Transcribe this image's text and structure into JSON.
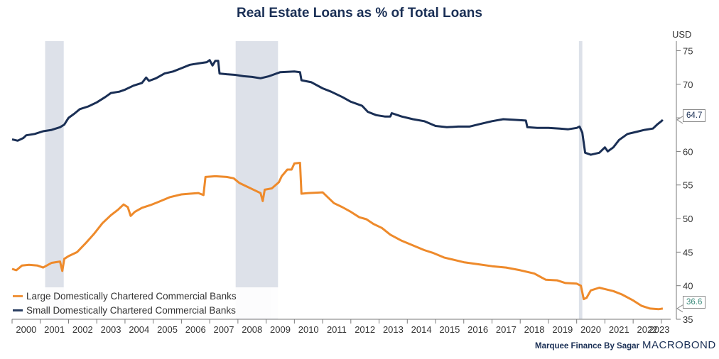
{
  "chart_data": {
    "type": "line",
    "title": "Real Estate Loans as % of Total Loans",
    "unit_label": "USD",
    "xlim": [
      2000.0,
      2023.33
    ],
    "ylim": [
      35,
      76
    ],
    "y_ticks": [
      35,
      40,
      45,
      50,
      55,
      60,
      65,
      70,
      75
    ],
    "x_tick_labels": [
      "2000",
      "2001",
      "2002",
      "2003",
      "2004",
      "2005",
      "2006",
      "2007",
      "2008",
      "2009",
      "2010",
      "2011",
      "2012",
      "2013",
      "2014",
      "2015",
      "2016",
      "2017",
      "2018",
      "2019",
      "2020",
      "2021",
      "2022",
      "2023"
    ],
    "recessions": [
      [
        2001.17,
        2001.83
      ],
      [
        2007.92,
        2009.42
      ],
      [
        2020.08,
        2020.2
      ]
    ],
    "grid": false,
    "legend_placement": "bottom-left",
    "series": [
      {
        "name": "Large Domestically Chartered Commercial Banks",
        "color": "#ee8a2b",
        "last_value": "36.6",
        "points": [
          [
            2000.0,
            42.5
          ],
          [
            2000.15,
            42.3
          ],
          [
            2000.35,
            43.0
          ],
          [
            2000.6,
            43.1
          ],
          [
            2000.9,
            43.0
          ],
          [
            2001.1,
            42.7
          ],
          [
            2001.4,
            43.4
          ],
          [
            2001.7,
            43.6
          ],
          [
            2001.78,
            42.2
          ],
          [
            2001.85,
            44.0
          ],
          [
            2002.0,
            44.4
          ],
          [
            2002.3,
            45.0
          ],
          [
            2002.6,
            46.3
          ],
          [
            2002.9,
            47.7
          ],
          [
            2003.2,
            49.3
          ],
          [
            2003.5,
            50.5
          ],
          [
            2003.75,
            51.3
          ],
          [
            2003.95,
            52.1
          ],
          [
            2004.1,
            51.7
          ],
          [
            2004.2,
            50.4
          ],
          [
            2004.35,
            51.0
          ],
          [
            2004.6,
            51.6
          ],
          [
            2004.9,
            52.0
          ],
          [
            2005.2,
            52.5
          ],
          [
            2005.6,
            53.2
          ],
          [
            2006.0,
            53.6
          ],
          [
            2006.3,
            53.7
          ],
          [
            2006.6,
            53.8
          ],
          [
            2006.78,
            53.5
          ],
          [
            2006.85,
            56.2
          ],
          [
            2007.2,
            56.3
          ],
          [
            2007.6,
            56.2
          ],
          [
            2007.85,
            56.0
          ],
          [
            2008.05,
            55.3
          ],
          [
            2008.3,
            54.8
          ],
          [
            2008.6,
            54.2
          ],
          [
            2008.8,
            53.8
          ],
          [
            2008.88,
            52.6
          ],
          [
            2008.95,
            54.3
          ],
          [
            2009.2,
            54.5
          ],
          [
            2009.45,
            55.4
          ],
          [
            2009.55,
            56.3
          ],
          [
            2009.75,
            57.3
          ],
          [
            2009.9,
            57.3
          ],
          [
            2010.0,
            58.2
          ],
          [
            2010.2,
            58.3
          ],
          [
            2010.25,
            53.7
          ],
          [
            2010.5,
            53.8
          ],
          [
            2011.0,
            53.9
          ],
          [
            2011.4,
            52.3
          ],
          [
            2011.7,
            51.7
          ],
          [
            2012.0,
            51.0
          ],
          [
            2012.3,
            50.2
          ],
          [
            2012.55,
            49.9
          ],
          [
            2012.8,
            49.2
          ],
          [
            2013.1,
            48.6
          ],
          [
            2013.4,
            47.6
          ],
          [
            2013.8,
            46.7
          ],
          [
            2014.2,
            46.0
          ],
          [
            2014.6,
            45.3
          ],
          [
            2014.9,
            44.9
          ],
          [
            2015.3,
            44.2
          ],
          [
            2015.7,
            43.8
          ],
          [
            2016.0,
            43.5
          ],
          [
            2016.5,
            43.2
          ],
          [
            2017.0,
            42.9
          ],
          [
            2017.5,
            42.7
          ],
          [
            2018.0,
            42.3
          ],
          [
            2018.5,
            41.8
          ],
          [
            2018.9,
            40.9
          ],
          [
            2019.3,
            40.8
          ],
          [
            2019.6,
            40.4
          ],
          [
            2020.0,
            40.3
          ],
          [
            2020.15,
            40.0
          ],
          [
            2020.25,
            38.0
          ],
          [
            2020.35,
            38.2
          ],
          [
            2020.5,
            39.3
          ],
          [
            2020.8,
            39.7
          ],
          [
            2021.0,
            39.5
          ],
          [
            2021.3,
            39.2
          ],
          [
            2021.6,
            38.7
          ],
          [
            2022.0,
            37.8
          ],
          [
            2022.3,
            37.0
          ],
          [
            2022.6,
            36.6
          ],
          [
            2022.9,
            36.5
          ],
          [
            2023.05,
            36.6
          ]
        ]
      },
      {
        "name": "Small Domestically Chartered Commercial Banks",
        "color": "#1a2f55",
        "last_value": "64.7",
        "points": [
          [
            2000.0,
            61.8
          ],
          [
            2000.2,
            61.6
          ],
          [
            2000.4,
            62.0
          ],
          [
            2000.5,
            62.4
          ],
          [
            2000.8,
            62.6
          ],
          [
            2001.1,
            63.0
          ],
          [
            2001.4,
            63.2
          ],
          [
            2001.7,
            63.6
          ],
          [
            2001.85,
            64.0
          ],
          [
            2002.0,
            65.0
          ],
          [
            2002.2,
            65.6
          ],
          [
            2002.4,
            66.3
          ],
          [
            2002.7,
            66.7
          ],
          [
            2003.0,
            67.3
          ],
          [
            2003.3,
            68.1
          ],
          [
            2003.5,
            68.7
          ],
          [
            2003.8,
            68.9
          ],
          [
            2004.0,
            69.2
          ],
          [
            2004.3,
            69.8
          ],
          [
            2004.6,
            70.2
          ],
          [
            2004.75,
            71.0
          ],
          [
            2004.85,
            70.5
          ],
          [
            2005.1,
            70.9
          ],
          [
            2005.4,
            71.6
          ],
          [
            2005.7,
            71.9
          ],
          [
            2006.0,
            72.4
          ],
          [
            2006.3,
            72.9
          ],
          [
            2006.6,
            73.1
          ],
          [
            2006.9,
            73.3
          ],
          [
            2007.0,
            73.6
          ],
          [
            2007.1,
            72.8
          ],
          [
            2007.2,
            73.5
          ],
          [
            2007.3,
            73.5
          ],
          [
            2007.35,
            71.6
          ],
          [
            2007.6,
            71.5
          ],
          [
            2007.9,
            71.4
          ],
          [
            2008.2,
            71.2
          ],
          [
            2008.5,
            71.1
          ],
          [
            2008.8,
            70.9
          ],
          [
            2009.1,
            71.2
          ],
          [
            2009.5,
            71.8
          ],
          [
            2010.0,
            71.9
          ],
          [
            2010.2,
            71.8
          ],
          [
            2010.25,
            70.6
          ],
          [
            2010.6,
            70.3
          ],
          [
            2011.0,
            69.4
          ],
          [
            2011.3,
            68.9
          ],
          [
            2011.7,
            68.1
          ],
          [
            2012.0,
            67.4
          ],
          [
            2012.4,
            66.8
          ],
          [
            2012.6,
            65.9
          ],
          [
            2012.9,
            65.4
          ],
          [
            2013.2,
            65.2
          ],
          [
            2013.4,
            65.2
          ],
          [
            2013.45,
            65.7
          ],
          [
            2013.8,
            65.2
          ],
          [
            2014.2,
            64.8
          ],
          [
            2014.6,
            64.5
          ],
          [
            2015.0,
            63.8
          ],
          [
            2015.4,
            63.6
          ],
          [
            2015.8,
            63.7
          ],
          [
            2016.2,
            63.7
          ],
          [
            2016.6,
            64.1
          ],
          [
            2017.0,
            64.5
          ],
          [
            2017.4,
            64.8
          ],
          [
            2017.8,
            64.7
          ],
          [
            2018.2,
            64.6
          ],
          [
            2018.25,
            63.6
          ],
          [
            2018.6,
            63.5
          ],
          [
            2019.0,
            63.5
          ],
          [
            2019.4,
            63.4
          ],
          [
            2019.7,
            63.3
          ],
          [
            2020.0,
            63.5
          ],
          [
            2020.1,
            63.7
          ],
          [
            2020.2,
            62.8
          ],
          [
            2020.3,
            59.8
          ],
          [
            2020.5,
            59.5
          ],
          [
            2020.8,
            59.8
          ],
          [
            2021.0,
            60.6
          ],
          [
            2021.1,
            60.0
          ],
          [
            2021.3,
            60.6
          ],
          [
            2021.5,
            61.7
          ],
          [
            2021.8,
            62.6
          ],
          [
            2022.1,
            62.9
          ],
          [
            2022.4,
            63.2
          ],
          [
            2022.7,
            63.4
          ],
          [
            2022.85,
            64.0
          ],
          [
            2023.0,
            64.5
          ],
          [
            2023.05,
            64.7
          ]
        ]
      }
    ]
  },
  "credit": "Marquee Finance By Sagar",
  "brand": "MACROBOND"
}
